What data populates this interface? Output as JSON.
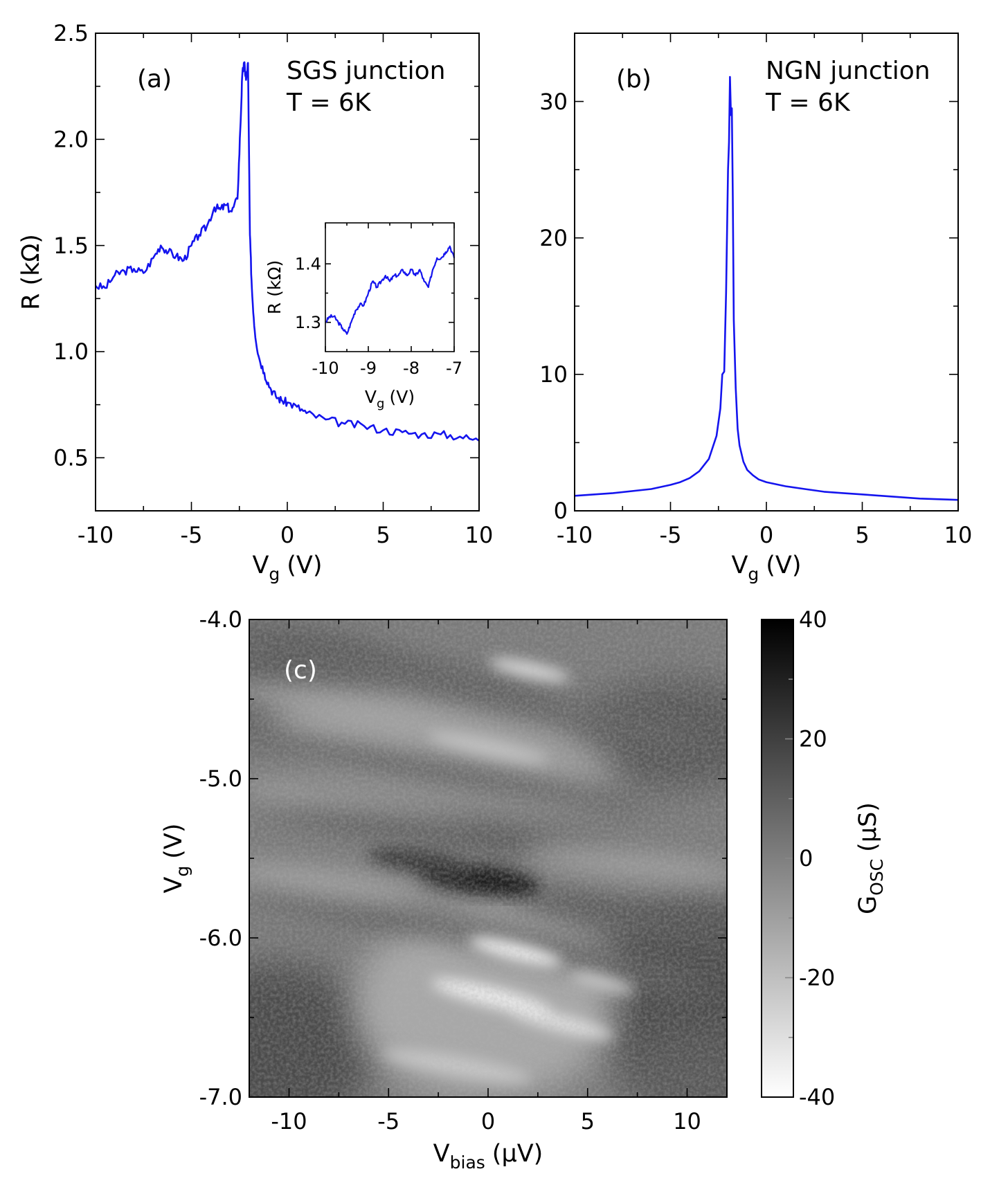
{
  "chart_data": [
    {
      "panel": "(a)",
      "type": "line",
      "title": "SGS junction",
      "annotation": "T = 6K",
      "xlabel": "V",
      "xlabel_sub": "g",
      "xlabel_unit": "(V)",
      "ylabel": "R (kΩ)",
      "xlim": [
        -10,
        10
      ],
      "ylim": [
        0.25,
        2.5
      ],
      "xticks": [
        -10,
        -5,
        0,
        5,
        10
      ],
      "xtick_labels": [
        "-10",
        "-5",
        "0",
        "5",
        "10"
      ],
      "yticks": [
        0.5,
        1.0,
        1.5,
        2.0,
        2.5
      ],
      "ytick_labels": [
        "0.5",
        "1.0",
        "1.5",
        "2.0",
        "2.5"
      ],
      "series": [
        {
          "name": "R",
          "color": "#1414ee",
          "x": [
            -10,
            -9.5,
            -9,
            -8.5,
            -8,
            -7.5,
            -7,
            -6.6,
            -6.2,
            -5.8,
            -5.4,
            -5.0,
            -4.6,
            -4.2,
            -3.8,
            -3.5,
            -3.2,
            -2.9,
            -2.6,
            -2.45,
            -2.35,
            -2.25,
            -2.15,
            -2.05,
            -1.95,
            -1.85,
            -1.7,
            -1.5,
            -1.2,
            -0.9,
            -0.6,
            -0.3,
            0,
            0.5,
            1,
            2,
            3,
            4,
            5,
            6,
            7,
            8,
            9,
            10
          ],
          "y": [
            1.31,
            1.3,
            1.36,
            1.38,
            1.39,
            1.37,
            1.44,
            1.5,
            1.47,
            1.45,
            1.43,
            1.5,
            1.55,
            1.59,
            1.68,
            1.67,
            1.69,
            1.66,
            1.72,
            2.05,
            2.3,
            2.36,
            2.28,
            2.36,
            1.55,
            1.3,
            1.1,
            0.98,
            0.9,
            0.83,
            0.79,
            0.77,
            0.76,
            0.74,
            0.71,
            0.68,
            0.66,
            0.65,
            0.63,
            0.62,
            0.61,
            0.61,
            0.6,
            0.58
          ]
        }
      ],
      "inset": {
        "type": "line",
        "xlabel": "V",
        "xlabel_sub": "g",
        "xlabel_unit": "(V)",
        "ylabel": "R (kΩ)",
        "xlim": [
          -10,
          -7
        ],
        "ylim": [
          1.25,
          1.47
        ],
        "xticks": [
          -10,
          -9,
          -8,
          -7
        ],
        "xtick_labels": [
          "-10",
          "-9",
          "-8",
          "-7"
        ],
        "yticks": [
          1.3,
          1.4
        ],
        "ytick_labels": [
          "1.3",
          "1.4"
        ],
        "x": [
          -10,
          -9.9,
          -9.8,
          -9.7,
          -9.6,
          -9.5,
          -9.4,
          -9.3,
          -9.2,
          -9.1,
          -9.0,
          -8.9,
          -8.8,
          -8.7,
          -8.6,
          -8.5,
          -8.4,
          -8.3,
          -8.2,
          -8.1,
          -8.0,
          -7.9,
          -7.8,
          -7.7,
          -7.6,
          -7.5,
          -7.4,
          -7.3,
          -7.2,
          -7.1,
          -7.0
        ],
        "y": [
          1.3,
          1.31,
          1.31,
          1.3,
          1.29,
          1.28,
          1.3,
          1.32,
          1.33,
          1.33,
          1.35,
          1.37,
          1.36,
          1.37,
          1.38,
          1.37,
          1.38,
          1.38,
          1.39,
          1.38,
          1.39,
          1.38,
          1.39,
          1.37,
          1.36,
          1.39,
          1.41,
          1.41,
          1.42,
          1.43,
          1.41
        ]
      }
    },
    {
      "panel": "(b)",
      "type": "line",
      "title": "NGN junction",
      "annotation": "T = 6K",
      "xlabel": "V",
      "xlabel_sub": "g",
      "xlabel_unit": "(V)",
      "ylabel": "",
      "xlim": [
        -10,
        10
      ],
      "ylim": [
        0,
        35
      ],
      "xticks": [
        -10,
        -5,
        0,
        5,
        10
      ],
      "xtick_labels": [
        "-10",
        "-5",
        "0",
        "5",
        "10"
      ],
      "yticks": [
        0,
        10,
        20,
        30
      ],
      "ytick_labels": [
        "0",
        "10",
        "20",
        "30"
      ],
      "series": [
        {
          "name": "R",
          "color": "#1414ee",
          "x": [
            -10,
            -8,
            -6,
            -5,
            -4.5,
            -4,
            -3.5,
            -3.0,
            -2.6,
            -2.4,
            -2.3,
            -2.2,
            -2.1,
            -2.0,
            -1.95,
            -1.9,
            -1.85,
            -1.8,
            -1.75,
            -1.7,
            -1.6,
            -1.5,
            -1.4,
            -1.2,
            -1.0,
            -0.7,
            -0.4,
            0,
            1,
            2,
            3,
            4,
            5,
            6,
            8,
            10
          ],
          "y": [
            1.1,
            1.3,
            1.6,
            1.9,
            2.1,
            2.4,
            2.9,
            3.8,
            5.5,
            7.5,
            10.0,
            10.2,
            16,
            25,
            27,
            31.8,
            29,
            29.5,
            23,
            14,
            9.0,
            6.0,
            4.8,
            3.6,
            3.0,
            2.6,
            2.3,
            2.1,
            1.8,
            1.6,
            1.4,
            1.3,
            1.2,
            1.1,
            0.9,
            0.8
          ]
        }
      ]
    },
    {
      "panel": "(c)",
      "type": "heatmap",
      "xlabel": "V",
      "xlabel_sub": "bias",
      "xlabel_unit": "(μV)",
      "ylabel": "V",
      "ylabel_sub": "g",
      "ylabel_unit": "(V)",
      "xlim": [
        -12,
        12
      ],
      "ylim": [
        -7.0,
        -4.0
      ],
      "xticks": [
        -10,
        -5,
        0,
        5,
        10
      ],
      "xtick_labels": [
        "-10",
        "-5",
        "0",
        "5",
        "10"
      ],
      "yticks": [
        -7.0,
        -6.0,
        -5.0,
        -4.0
      ],
      "ytick_labels": [
        "-7.0",
        "-6.0",
        "-5.0",
        "-4.0"
      ],
      "colorbar": {
        "label": "G",
        "label_sub": "OSC",
        "label_unit": "(μS)",
        "range": [
          -40,
          40
        ],
        "ticks": [
          -40,
          -20,
          0,
          20,
          40
        ],
        "tick_labels": [
          "-40",
          "-20",
          "0",
          "20",
          "40"
        ],
        "colormap": "gray_r"
      }
    }
  ]
}
